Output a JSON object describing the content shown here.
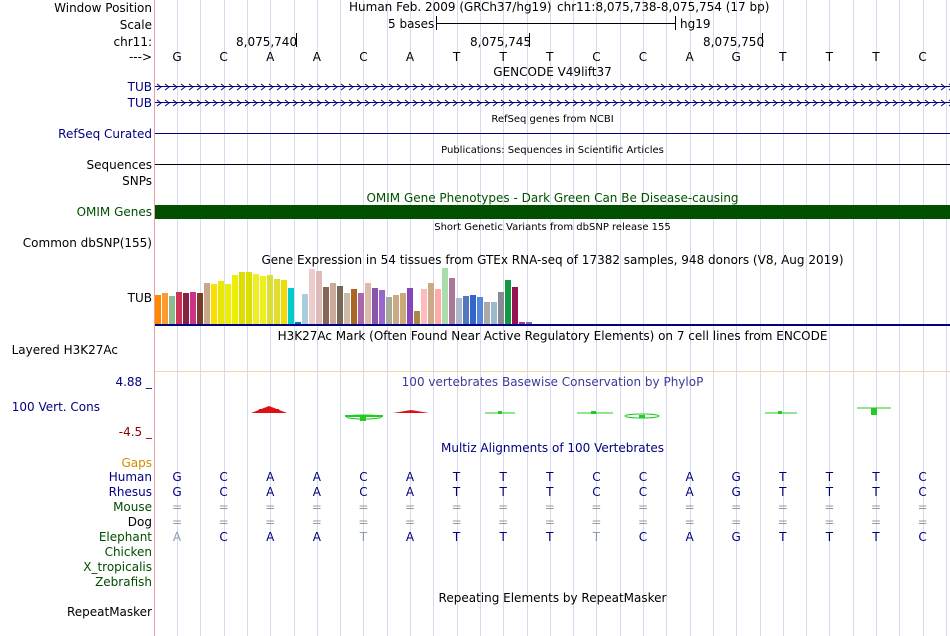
{
  "labels": {
    "window_position": "Window Position",
    "scale": "Scale",
    "chr": "chr11:",
    "arrow": "--->",
    "tub1": "TUB",
    "tub2": "TUB",
    "refseq": "RefSeq Curated",
    "sequences": "Sequences",
    "snps": "SNPs",
    "omim": "OMIM Genes",
    "common_dbsnp": "Common dbSNP(155)",
    "tub_expr": "TUB",
    "layered": "Layered H3K27Ac",
    "cons_max": "4.88 _",
    "vert_cons": "100 Vert. Cons",
    "cons_min": "-4.5 _",
    "gaps": "Gaps",
    "species": [
      "Human",
      "Rhesus",
      "Mouse",
      "Dog",
      "Elephant",
      "Chicken",
      "X_tropicalis",
      "Zebrafish"
    ],
    "repeatmasker": "RepeatMasker"
  },
  "header": {
    "assembly": "Human Feb. 2009 (GRCh37/hg19)",
    "position": "chr11:8,075,738-8,075,754 (17 bp)",
    "scale_bases": "5 bases",
    "scale_db": "hg19",
    "ticks": [
      "8,075,740",
      "8,075,745",
      "8,075,750"
    ]
  },
  "bases": [
    "G",
    "C",
    "A",
    "A",
    "C",
    "A",
    "T",
    "T",
    "T",
    "C",
    "C",
    "A",
    "G",
    "T",
    "T",
    "T",
    "C"
  ],
  "titles": {
    "gencode": "GENCODE V49lift37",
    "refseq": "RefSeq genes from NCBI",
    "publications": "Publications: Sequences in Scientific Articles",
    "omim": "OMIM Gene Phenotypes - Dark Green Can Be Disease-causing",
    "dbsnp": "Short Genetic Variants from dbSNP release 155",
    "gtex": "Gene Expression in 54 tissues from GTEx RNA-seq of 17382 samples, 948 donors (V8, Aug 2019)",
    "h3k27ac": "H3K27Ac Mark (Often Found Near Active Regulatory Elements) on 7 cell lines from ENCODE",
    "phylop": "100 vertebrates Basewise Conservation by PhyloP",
    "multiz": "Multiz Alignments of 100 Vertebrates",
    "repeat": "Repeating Elements by RepeatMasker"
  },
  "alignment": {
    "Human": [
      "G",
      "C",
      "A",
      "A",
      "C",
      "A",
      "T",
      "T",
      "T",
      "C",
      "C",
      "A",
      "G",
      "T",
      "T",
      "T",
      "C"
    ],
    "Rhesus": [
      "G",
      "C",
      "A",
      "A",
      "C",
      "A",
      "T",
      "T",
      "T",
      "C",
      "C",
      "A",
      "G",
      "T",
      "T",
      "T",
      "C"
    ],
    "Mouse": [
      "=",
      "=",
      "=",
      "=",
      "=",
      "=",
      "=",
      "=",
      "=",
      "=",
      "=",
      "=",
      "=",
      "=",
      "=",
      "=",
      "="
    ],
    "Dog": [
      "=",
      "=",
      "=",
      "=",
      "=",
      "=",
      "=",
      "=",
      "=",
      "=",
      "=",
      "=",
      "=",
      "=",
      "=",
      "=",
      "="
    ],
    "Elephant": [
      "A",
      "C",
      "A",
      "A",
      "T",
      "A",
      "T",
      "T",
      "T",
      "T",
      "C",
      "A",
      "G",
      "T",
      "T",
      "T",
      "C"
    ]
  },
  "elephant_mismatch_flags": [
    1,
    0,
    0,
    0,
    1,
    0,
    0,
    0,
    0,
    1,
    0,
    0,
    0,
    0,
    0,
    0,
    0
  ],
  "gtex_bar_levels": [
    0.52,
    0.56,
    0.5,
    0.58,
    0.56,
    0.58,
    0.55,
    0.74,
    0.72,
    0.76,
    0.72,
    0.88,
    0.92,
    0.92,
    0.9,
    0.86,
    0.88,
    0.8,
    0.78,
    0.64,
    0.04,
    0.54,
    0.98,
    0.94,
    0.66,
    0.74,
    0.68,
    0.56,
    0.62,
    0.56,
    0.74,
    0.64,
    0.6,
    0.48,
    0.52,
    0.56,
    0.64,
    0.24,
    0.62,
    0.74,
    0.62,
    1.0,
    0.82,
    0.46,
    0.5,
    0.52,
    0.48,
    0.4,
    0.4,
    0.58,
    0.78,
    0.66,
    0.04,
    0.04
  ],
  "gtex_colors": [
    "#ff8800",
    "#ff9933",
    "#8fbc8f",
    "#cc3355",
    "#882244",
    "#cc3388",
    "#7a3a2a",
    "#c8a88a",
    "#ffdd00",
    "#e8e800",
    "#eeee00",
    "#eeee00",
    "#dddd00",
    "#dddd00",
    "#eeee22",
    "#eeee22",
    "#dddd33",
    "#dddd33",
    "#eedd00",
    "#00cccc",
    "#0077cc",
    "#aaccdd",
    "#eecccc",
    "#ddbbbb",
    "#886655",
    "#ccaa99",
    "#776655",
    "#ccbbaa",
    "#aa6622",
    "#aa66aa",
    "#ddbbaa",
    "#8855aa",
    "#9966cc",
    "#aaaa99",
    "#ccaa88",
    "#ccaa77",
    "#8844bb",
    "#aa8844",
    "#ffbbbb",
    "#ccaa88",
    "#ffaaaa",
    "#aaddaa",
    "#aa7799",
    "#aabbcc",
    "#5577bb",
    "#3366cc",
    "#5588dd",
    "#aaaaaa",
    "#99bbcc",
    "#888899",
    "#119944",
    "#991155",
    "#aa33aa",
    "#7766cc"
  ],
  "colors": {
    "navy": "#000080",
    "omim_green": "#005000",
    "gaps_orange": "#d48a00",
    "species_green": "#006400",
    "cons_red": "#dd1111",
    "cons_green": "#22cc22",
    "cons_max_color": "#000080",
    "cons_min_color": "#8b0000"
  }
}
